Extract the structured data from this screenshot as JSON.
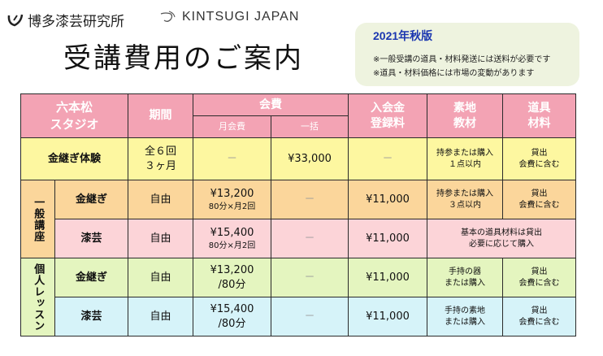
{
  "header": {
    "lab_logo_text": "博多漆芸研究所",
    "brand_logo_text": "KINTSUGI JAPAN",
    "title": "受講費用のご案内"
  },
  "notice": {
    "season": "2021年秋版",
    "note1": "※一般受講の道具・材料発送には送料が必要です",
    "note2": "※道具・材料価格には市場の変動があります"
  },
  "table": {
    "headers": {
      "studio": "六本松\nスタジオ",
      "period": "期間",
      "fee": "会費",
      "monthly": "月会費",
      "lump": "一括",
      "entry": "入会金\n登録料",
      "material": "素地\n教材",
      "tools": "道具\n材料"
    },
    "groups": {
      "general": "一般講座",
      "private": "個人レッスン"
    },
    "rows": [
      {
        "course": "金継ぎ体験",
        "period": "全６回\n３ヶ月",
        "monthly": "－",
        "monthly_sub": "",
        "lump": "¥33,000",
        "entry": "－",
        "material": "持参または購入\n１点以内",
        "tools": "貸出\n会費に含む"
      },
      {
        "course": "金継ぎ",
        "period": "自由",
        "monthly": "¥13,200",
        "monthly_sub": "80分×月2回",
        "lump": "－",
        "entry": "¥11,000",
        "material": "持参または購入\n３点以内",
        "tools": "貸出\n会費に含む"
      },
      {
        "course": "漆芸",
        "period": "自由",
        "monthly": "¥15,400",
        "monthly_sub": "80分×月2回",
        "lump": "－",
        "entry": "¥11,000",
        "material_tools": "基本の道具材料は貸出\n必要に応じて購入"
      },
      {
        "course": "金継ぎ",
        "period": "自由",
        "monthly": "¥13,200",
        "monthly_sub": "/80分",
        "lump": "－",
        "entry": "¥11,000",
        "material": "手持の器\nまたは購入",
        "tools": "貸出\n会費に含む"
      },
      {
        "course": "漆芸",
        "period": "自由",
        "monthly": "¥15,400",
        "monthly_sub": "/80分",
        "lump": "－",
        "entry": "¥11,000",
        "material": "手持の素地\nまたは購入",
        "tools": "貸出\n会費に含む"
      }
    ]
  }
}
